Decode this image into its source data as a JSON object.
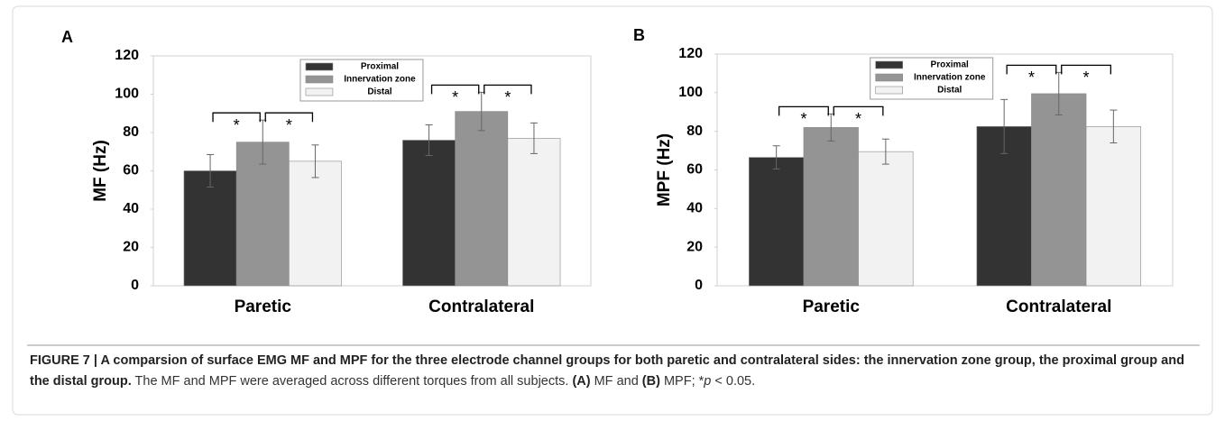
{
  "chart_data": [
    {
      "type": "bar",
      "panel": "A",
      "ylabel": "MF (Hz)",
      "categories": [
        "Paretic",
        "Contralateral"
      ],
      "series": [
        {
          "name": "Proximal",
          "color": "#333333",
          "values": [
            60,
            76
          ],
          "errors": [
            8.5,
            8
          ]
        },
        {
          "name": "Innervation zone",
          "color": "#949494",
          "values": [
            75,
            91
          ],
          "errors": [
            11.5,
            10
          ]
        },
        {
          "name": "Distal",
          "color": "#f2f2f2",
          "values": [
            65,
            77
          ],
          "errors": [
            8.5,
            8
          ]
        }
      ],
      "ylim": [
        0,
        120
      ],
      "yticks": [
        0,
        20,
        40,
        60,
        80,
        100,
        120
      ],
      "significance_label": "*",
      "legend": "top"
    },
    {
      "type": "bar",
      "panel": "B",
      "ylabel": "MPF (Hz)",
      "categories": [
        "Paretic",
        "Contralateral"
      ],
      "series": [
        {
          "name": "Proximal",
          "color": "#333333",
          "values": [
            66.5,
            82.5
          ],
          "errors": [
            6,
            14
          ]
        },
        {
          "name": "Innervation zone",
          "color": "#949494",
          "values": [
            82,
            99.5
          ],
          "errors": [
            7,
            11
          ]
        },
        {
          "name": "Distal",
          "color": "#f2f2f2",
          "values": [
            69.5,
            82.5
          ],
          "errors": [
            6.5,
            8.5
          ]
        }
      ],
      "ylim": [
        0,
        120
      ],
      "yticks": [
        0,
        20,
        40,
        60,
        80,
        100,
        120
      ],
      "significance_label": "*",
      "legend": "top"
    }
  ],
  "caption": [
    {
      "text": "FIGURE 7 | A comparsion of surface EMG MF and MPF for the three electrode channel groups for both paretic and contralateral sides: the innervation zone group, the proximal group and the distal group.",
      "style": "bold"
    },
    {
      "text": " The MF and MPF were averaged across different torques from all subjects. ",
      "style": "normal"
    },
    {
      "text": "(A)",
      "style": "bold"
    },
    {
      "text": " MF and ",
      "style": "normal"
    },
    {
      "text": "(B)",
      "style": "bold"
    },
    {
      "text": " MPF; *",
      "style": "normal"
    },
    {
      "text": "p",
      "style": "italic"
    },
    {
      "text": " < 0.05.",
      "style": "normal"
    }
  ]
}
